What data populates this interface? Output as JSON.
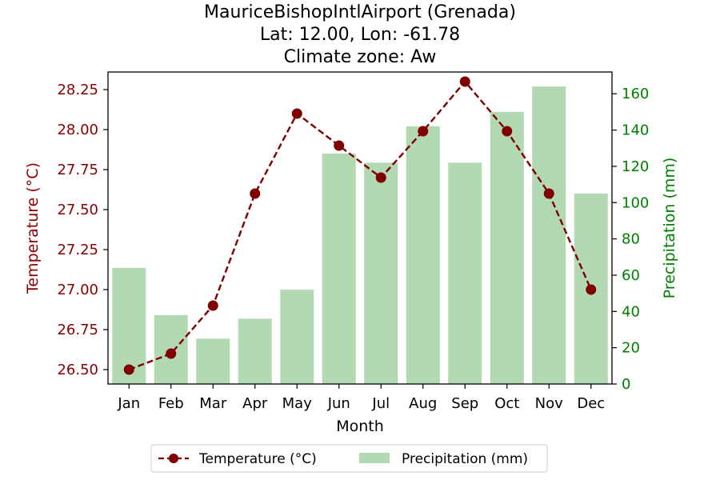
{
  "chart_data": {
    "type": "bar+line",
    "title_lines": [
      "MauriceBishopIntlAirport (Grenada)",
      "Lat: 12.00, Lon: -61.78",
      "Climate zone: Aw"
    ],
    "xlabel": "Month",
    "ylabel_left": "Temperature (°C)",
    "ylabel_right": "Precipitation (mm)",
    "categories": [
      "Jan",
      "Feb",
      "Mar",
      "Apr",
      "May",
      "Jun",
      "Jul",
      "Aug",
      "Sep",
      "Oct",
      "Nov",
      "Dec"
    ],
    "series": [
      {
        "name": "Temperature (°C)",
        "type": "line",
        "axis": "left",
        "values": [
          26.5,
          26.6,
          26.9,
          27.6,
          28.1,
          27.9,
          27.7,
          27.99,
          28.3,
          27.99,
          27.6,
          27.0
        ]
      },
      {
        "name": "Precipitation (mm)",
        "type": "bar",
        "axis": "right",
        "values": [
          64,
          38,
          25,
          36,
          52,
          127,
          122,
          142,
          122,
          150,
          164,
          105
        ]
      }
    ],
    "ylim_left": [
      26.41,
      28.36
    ],
    "ylim_right": [
      0,
      172
    ],
    "yticks_left": [
      "26.50",
      "26.75",
      "27.00",
      "27.25",
      "27.50",
      "27.75",
      "28.00",
      "28.25"
    ],
    "yticks_right": [
      "0",
      "20",
      "40",
      "60",
      "80",
      "100",
      "120",
      "140",
      "160"
    ],
    "legend": {
      "placement": "bottom-center",
      "labels": [
        "Temperature (°C)",
        "Precipitation (mm)"
      ]
    },
    "grid": false,
    "colors": {
      "line": "#800000",
      "bar": "#b2d9b2",
      "left_axis": "#8b0000",
      "right_axis": "#008000"
    }
  }
}
